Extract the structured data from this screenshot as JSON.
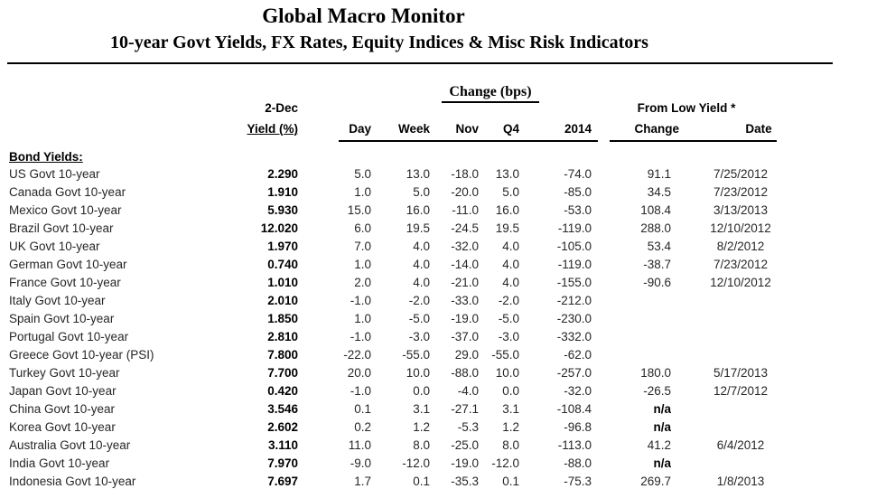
{
  "header": {
    "title": "Global Macro Monitor",
    "subtitle": "10-year Govt Yields, FX Rates, Equity Indices & Misc Risk Indicators"
  },
  "colors": {
    "text": "#000000",
    "background": "#ffffff"
  },
  "table": {
    "group_header": "Change (bps)",
    "asof_label": "2-Dec",
    "yield_label": "Yield (%)",
    "from_low_label": "From Low Yield *",
    "columns": [
      "Day",
      "Week",
      "Nov",
      "Q4",
      "2014"
    ],
    "change_label": "Change",
    "date_label": "Date",
    "section_label": "Bond Yields:",
    "rows": [
      {
        "name": "US Govt 10-year",
        "yield": "2.290",
        "day": "5.0",
        "week": "13.0",
        "nov": "-18.0",
        "q4": "13.0",
        "y2014": "-74.0",
        "change": "91.1",
        "date": "7/25/2012"
      },
      {
        "name": "Canada Govt 10-year",
        "yield": "1.910",
        "day": "1.0",
        "week": "5.0",
        "nov": "-20.0",
        "q4": "5.0",
        "y2014": "-85.0",
        "change": "34.5",
        "date": "7/23/2012"
      },
      {
        "name": "Mexico Govt 10-year",
        "yield": "5.930",
        "day": "15.0",
        "week": "16.0",
        "nov": "-11.0",
        "q4": "16.0",
        "y2014": "-53.0",
        "change": "108.4",
        "date": "3/13/2013"
      },
      {
        "name": "Brazil Govt 10-year",
        "yield": "12.020",
        "day": "6.0",
        "week": "19.5",
        "nov": "-24.5",
        "q4": "19.5",
        "y2014": "-119.0",
        "change": "288.0",
        "date": "12/10/2012"
      },
      {
        "name": "UK Govt 10-year",
        "yield": "1.970",
        "day": "7.0",
        "week": "4.0",
        "nov": "-32.0",
        "q4": "4.0",
        "y2014": "-105.0",
        "change": "53.4",
        "date": "8/2/2012"
      },
      {
        "name": "German Govt 10-year",
        "yield": "0.740",
        "day": "1.0",
        "week": "4.0",
        "nov": "-14.0",
        "q4": "4.0",
        "y2014": "-119.0",
        "change": "-38.7",
        "date": "7/23/2012"
      },
      {
        "name": "France Govt 10-year",
        "yield": "1.010",
        "day": "2.0",
        "week": "4.0",
        "nov": "-21.0",
        "q4": "4.0",
        "y2014": "-155.0",
        "change": "-90.6",
        "date": "12/10/2012"
      },
      {
        "name": "Italy Govt 10-year",
        "yield": "2.010",
        "day": "-1.0",
        "week": "-2.0",
        "nov": "-33.0",
        "q4": "-2.0",
        "y2014": "-212.0",
        "change": "",
        "date": ""
      },
      {
        "name": "Spain Govt 10-year",
        "yield": "1.850",
        "day": "1.0",
        "week": "-5.0",
        "nov": "-19.0",
        "q4": "-5.0",
        "y2014": "-230.0",
        "change": "",
        "date": ""
      },
      {
        "name": "Portugal Govt 10-year",
        "yield": "2.810",
        "day": "-1.0",
        "week": "-3.0",
        "nov": "-37.0",
        "q4": "-3.0",
        "y2014": "-332.0",
        "change": "",
        "date": ""
      },
      {
        "name": "Greece Govt 10-year (PSI)",
        "yield": "7.800",
        "day": "-22.0",
        "week": "-55.0",
        "nov": "29.0",
        "q4": "-55.0",
        "y2014": "-62.0",
        "change": "",
        "date": ""
      },
      {
        "name": "Turkey Govt 10-year",
        "yield": "7.700",
        "day": "20.0",
        "week": "10.0",
        "nov": "-88.0",
        "q4": "10.0",
        "y2014": "-257.0",
        "change": "180.0",
        "date": "5/17/2013"
      },
      {
        "name": "Japan Govt 10-year",
        "yield": "0.420",
        "day": "-1.0",
        "week": "0.0",
        "nov": "-4.0",
        "q4": "0.0",
        "y2014": "-32.0",
        "change": "-26.5",
        "date": "12/7/2012"
      },
      {
        "name": "China Govt 10-year",
        "yield": "3.546",
        "day": "0.1",
        "week": "3.1",
        "nov": "-27.1",
        "q4": "3.1",
        "y2014": "-108.4",
        "change": "n/a",
        "date": ""
      },
      {
        "name": "Korea Govt 10-year",
        "yield": "2.602",
        "day": "0.2",
        "week": "1.2",
        "nov": "-5.3",
        "q4": "1.2",
        "y2014": "-96.8",
        "change": "n/a",
        "date": ""
      },
      {
        "name": "Australia Govt 10-year",
        "yield": "3.110",
        "day": "11.0",
        "week": "8.0",
        "nov": "-25.0",
        "q4": "8.0",
        "y2014": "-113.0",
        "change": "41.2",
        "date": "6/4/2012"
      },
      {
        "name": "India Govt 10-year",
        "yield": "7.970",
        "day": "-9.0",
        "week": "-12.0",
        "nov": "-19.0",
        "q4": "-12.0",
        "y2014": "-88.0",
        "change": "n/a",
        "date": ""
      },
      {
        "name": "Indonesia Govt 10-year",
        "yield": "7.697",
        "day": "1.7",
        "week": "0.1",
        "nov": "-35.3",
        "q4": "0.1",
        "y2014": "-75.3",
        "change": "269.7",
        "date": "1/8/2013"
      }
    ]
  }
}
